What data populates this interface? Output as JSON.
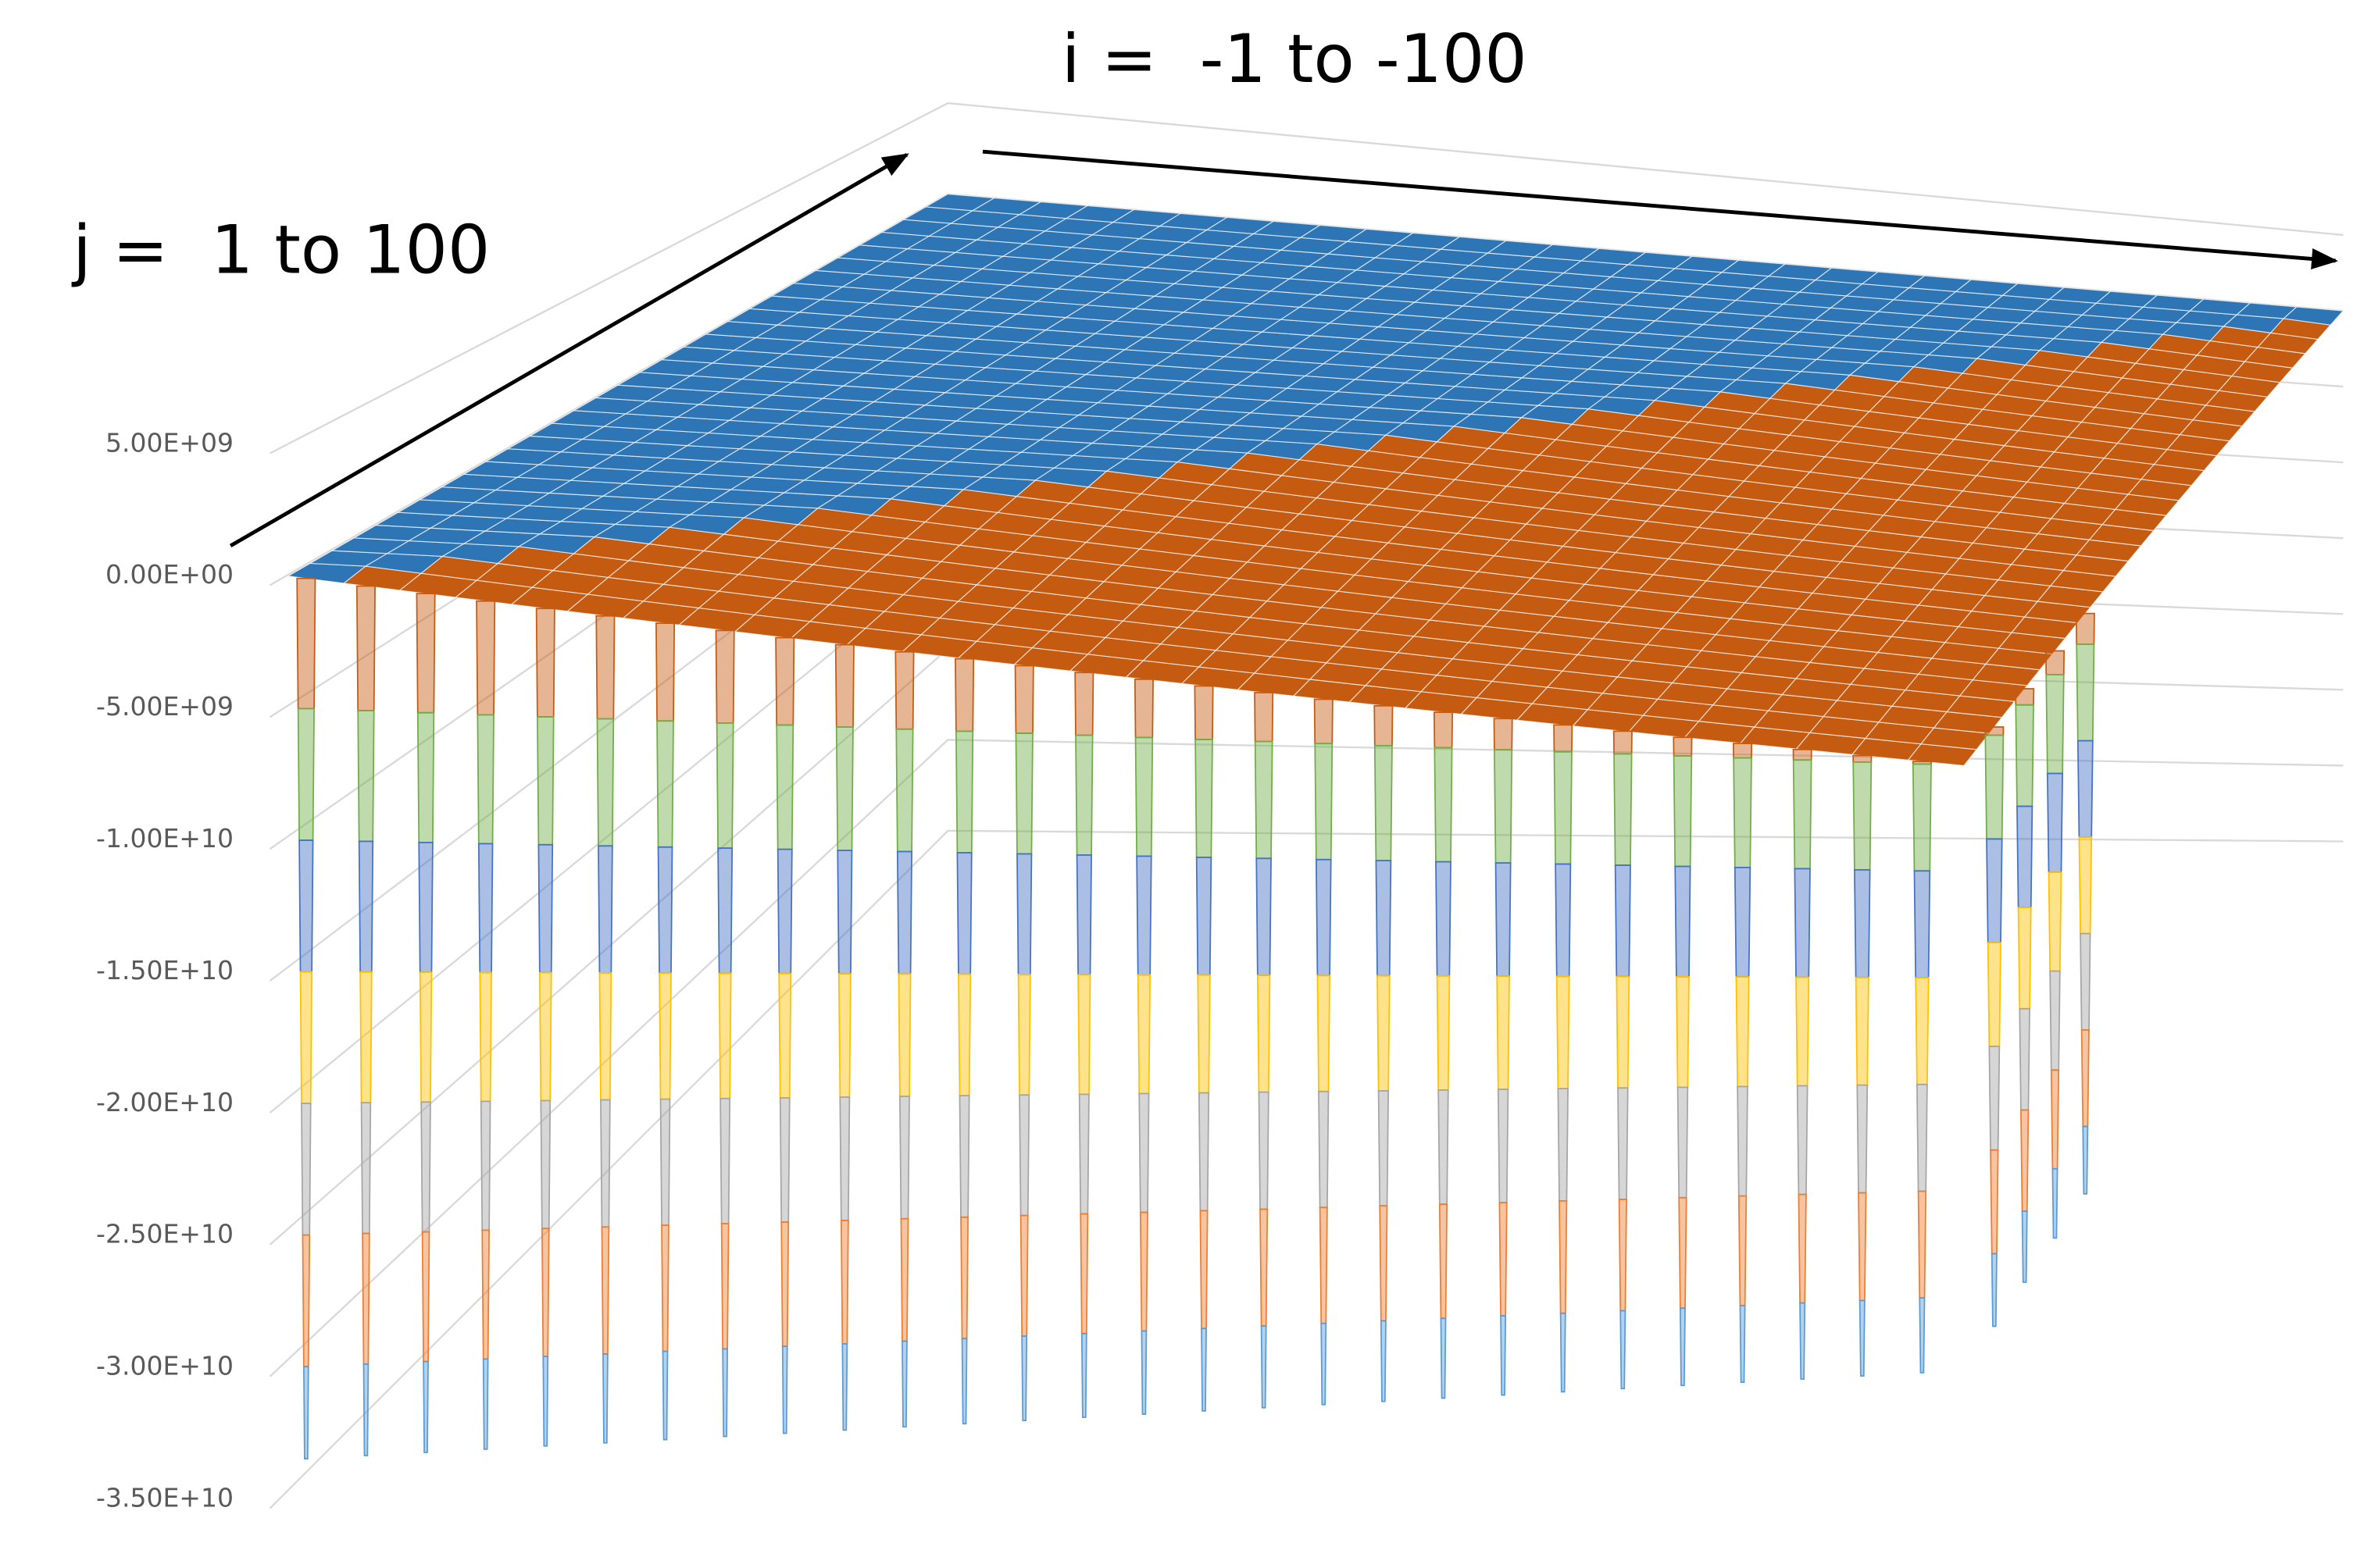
{
  "chart_data": {
    "type": "surface",
    "x_label": "i =  -1 to -100",
    "y_label": "j =  1 to 100",
    "zlim": [
      -35000000000,
      5000000000
    ],
    "zticks": [
      {
        "value": 5000000000,
        "label": "5.00E+09"
      },
      {
        "value": 0,
        "label": "0.00E+00"
      },
      {
        "value": -5000000000,
        "label": "-5.00E+09"
      },
      {
        "value": -10000000000,
        "label": "-1.00E+10"
      },
      {
        "value": -15000000000,
        "label": "-1.50E+10"
      },
      {
        "value": -20000000000,
        "label": "-2.00E+10"
      },
      {
        "value": -25000000000,
        "label": "-2.50E+10"
      },
      {
        "value": -30000000000,
        "label": "-3.00E+10"
      },
      {
        "value": -35000000000,
        "label": "-3.50E+10"
      }
    ],
    "band_colors": [
      "#2e75b6",
      "#c55a11",
      "#70ad47",
      "#4472c4",
      "#ffc000",
      "#a5a5a5",
      "#ed7d31",
      "#5b9bd5"
    ],
    "grid": true,
    "surface": {
      "rows": [
        [
          0,
          -5000000000
        ],
        [
          0,
          0
        ]
      ]
    },
    "spikes": {
      "values": [
        -33500000000,
        -33500000000,
        -33500000000,
        -33500000000,
        -33500000000,
        -33500000000,
        -33500000000,
        -33500000000,
        -33500000000,
        -33500000000,
        -33500000000,
        -33500000000,
        -33500000000,
        -33500000000,
        -33500000000,
        -33500000000,
        -33500000000,
        -33500000000,
        -33500000000,
        -33500000000,
        -33500000000,
        -33500000000,
        -33500000000,
        -33500000000,
        -33500000000,
        -33500000000,
        -33500000000,
        -33500000000,
        -33500000000,
        -33500000000,
        -33500000000,
        -33500000000
      ]
    }
  }
}
